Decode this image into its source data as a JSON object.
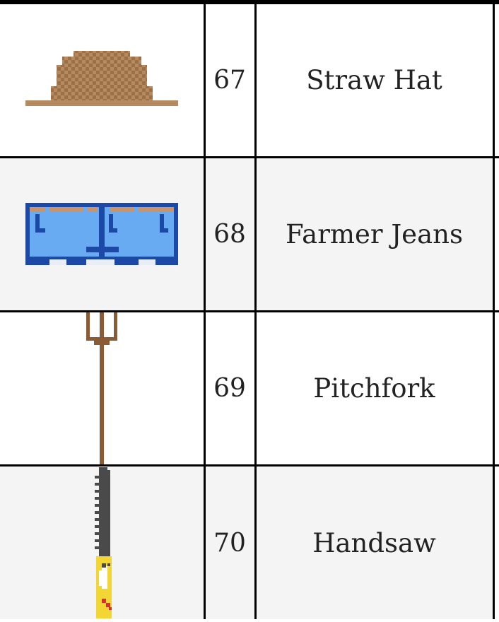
{
  "items": [
    {
      "icon": "straw-hat-icon",
      "number": "67",
      "name": "Straw Hat"
    },
    {
      "icon": "farmer-jeans-icon",
      "number": "68",
      "name": "Farmer Jeans"
    },
    {
      "icon": "pitchfork-icon",
      "number": "69",
      "name": "Pitchfork"
    },
    {
      "icon": "handsaw-icon",
      "number": "70",
      "name": "Handsaw"
    }
  ],
  "colors": {
    "hat_tan": "#b58a5e",
    "hat_dark": "#9b7048",
    "jeans_light": "#69abf2",
    "jeans_dark": "#1c48a6",
    "jeans_belt": "#c9946a",
    "pitchfork_brown": "#8a5c35",
    "saw_blade": "#4a4a4a",
    "saw_handle": "#f2d633",
    "saw_red": "#d9302c"
  }
}
